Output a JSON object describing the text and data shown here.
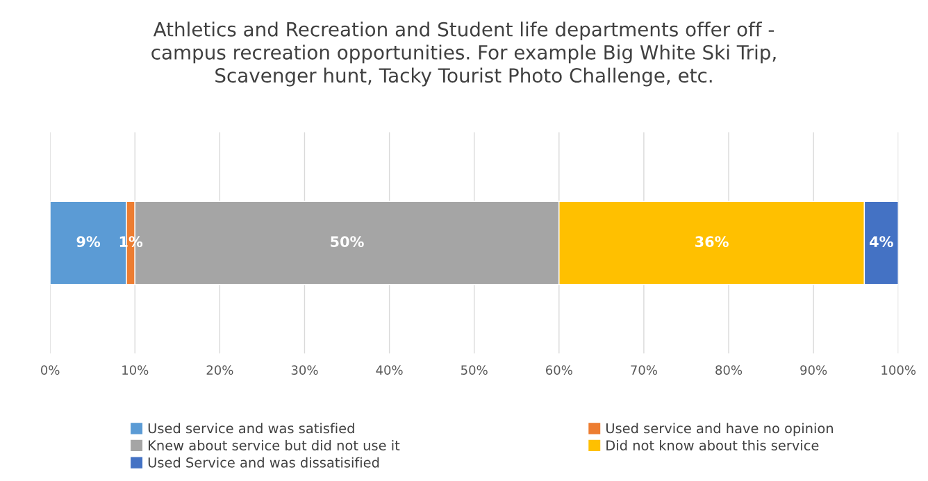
{
  "chart_data": {
    "type": "bar",
    "orientation": "horizontal",
    "stacked": true,
    "title": "Athletics and Recreation and Student life departments offer off - campus recreation opportunities. For example Big White Ski Trip, Scavenger hunt, Tacky Tourist Photo Challenge, etc.",
    "categories": [
      null
    ],
    "series": [
      {
        "name": "Used service and was satisfied",
        "color": "#5b9bd5",
        "values": [
          9
        ],
        "value_labels": [
          "9%"
        ]
      },
      {
        "name": "Used service and have no opinion",
        "color": "#ed7d31",
        "values": [
          1
        ],
        "value_labels": [
          "1%"
        ]
      },
      {
        "name": "Knew about service but did not use it",
        "color": "#a5a5a5",
        "values": [
          50
        ],
        "value_labels": [
          "50%"
        ]
      },
      {
        "name": "Did not know about this service",
        "color": "#ffc000",
        "values": [
          36
        ],
        "value_labels": [
          "36%"
        ]
      },
      {
        "name": "Used Service and was dissatisified",
        "color": "#4472c4",
        "values": [
          4
        ],
        "value_labels": [
          "4%"
        ]
      }
    ],
    "xlim": [
      0,
      100
    ],
    "xticks": [
      {
        "value": 0,
        "label": "0%"
      },
      {
        "value": 10,
        "label": "10%"
      },
      {
        "value": 20,
        "label": "20%"
      },
      {
        "value": 30,
        "label": "30%"
      },
      {
        "value": 40,
        "label": "40%"
      },
      {
        "value": 50,
        "label": "50%"
      },
      {
        "value": 60,
        "label": "60%"
      },
      {
        "value": 70,
        "label": "70%"
      },
      {
        "value": 80,
        "label": "80%"
      },
      {
        "value": 90,
        "label": "90%"
      },
      {
        "value": 100,
        "label": "100%"
      }
    ],
    "grid": "x",
    "legend": "bottom"
  }
}
